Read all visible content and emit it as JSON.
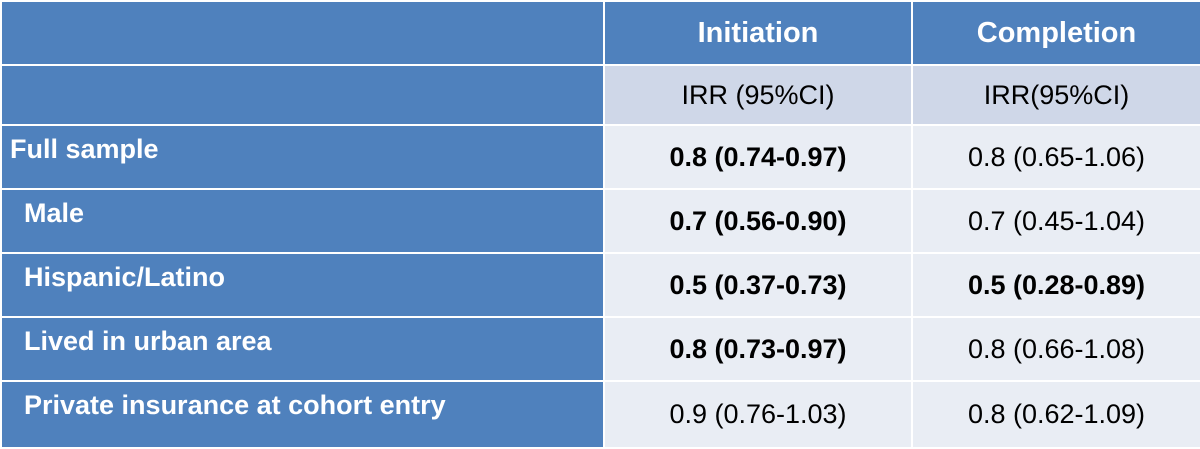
{
  "table": {
    "columns": [
      "",
      "Initiation",
      "Completion"
    ],
    "subheader": [
      "",
      "IRR (95%CI)",
      "IRR(95%CI)"
    ],
    "rows": [
      {
        "label": "Full sample",
        "initiation": "0.8 (0.74-0.97)",
        "completion": "0.8 (0.65-1.06)"
      },
      {
        "label": "Male",
        "initiation": "0.7 (0.56-0.90)",
        "completion": "0.7 (0.45-1.04)"
      },
      {
        "label": "Hispanic/Latino",
        "initiation": "0.5 (0.37-0.73)",
        "completion": "0.5 (0.28-0.89)"
      },
      {
        "label": "Lived in urban area",
        "initiation": "0.8 (0.73-0.97)",
        "completion": "0.8 (0.66-1.08)"
      },
      {
        "label": "Private insurance at cohort entry",
        "initiation": "0.9 (0.76-1.03)",
        "completion": "0.8 (0.62-1.09)"
      }
    ]
  },
  "colors": {
    "header_blue": "#4f81bd",
    "subheader_lavender": "#cfd7e8",
    "row_light": "#e9edf4",
    "border": "#ffffff"
  }
}
